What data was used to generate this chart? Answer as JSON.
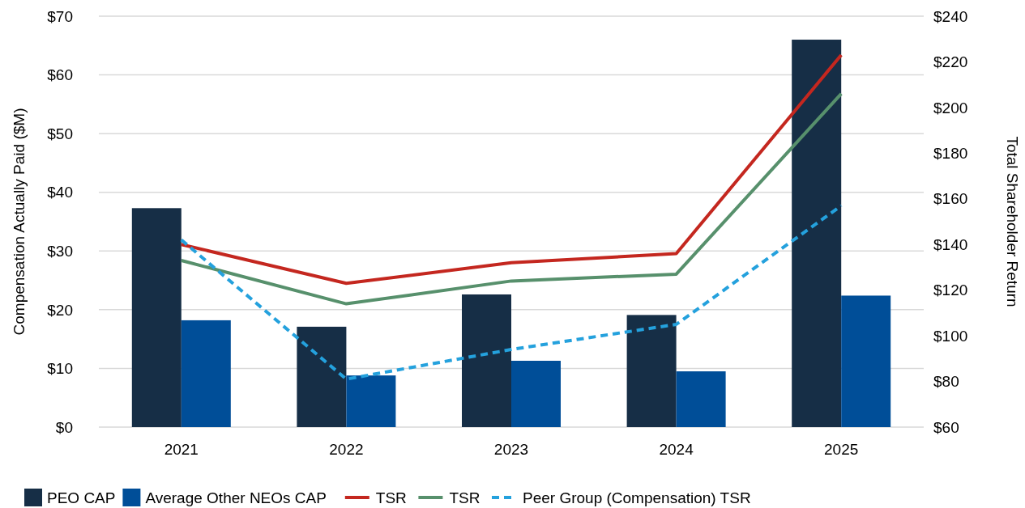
{
  "chart_data": {
    "type": "bar",
    "categories": [
      "2021",
      "2022",
      "2023",
      "2024",
      "2025"
    ],
    "ylabel": "Compensation Actually Paid ($M)",
    "y2label": "Total Shareholder Return",
    "ylim": [
      0,
      70
    ],
    "yticks": [
      {
        "value": 0,
        "label": "$0"
      },
      {
        "value": 10,
        "label": "$10"
      },
      {
        "value": 20,
        "label": "$20"
      },
      {
        "value": 30,
        "label": "$30"
      },
      {
        "value": 40,
        "label": "$40"
      },
      {
        "value": 50,
        "label": "$50"
      },
      {
        "value": 60,
        "label": "$60"
      },
      {
        "value": 70,
        "label": "$70"
      }
    ],
    "y2lim": [
      60,
      240
    ],
    "y2ticks": [
      {
        "value": 60,
        "label": "$60"
      },
      {
        "value": 80,
        "label": "$80"
      },
      {
        "value": 100,
        "label": "$100"
      },
      {
        "value": 120,
        "label": "$120"
      },
      {
        "value": 140,
        "label": "$140"
      },
      {
        "value": 160,
        "label": "$160"
      },
      {
        "value": 180,
        "label": "$180"
      },
      {
        "value": 200,
        "label": "$200"
      },
      {
        "value": 220,
        "label": "$220"
      },
      {
        "value": 240,
        "label": "$240"
      }
    ],
    "grid": "y",
    "legend": "bottom",
    "series": [
      {
        "name": "PEO CAP",
        "color": "#162e46",
        "values": [
          37.3,
          17.1,
          22.6,
          19.1,
          66.0
        ]
      },
      {
        "name": "Average Other NEOs CAP",
        "color": "#004e98",
        "values": [
          18.2,
          8.8,
          11.3,
          9.5,
          22.4
        ]
      },
      {
        "name": "TSR",
        "type": "line",
        "axis": "y2",
        "color": "#c4271f",
        "line_style": "solid",
        "values": [
          140,
          123,
          132,
          136,
          223
        ]
      },
      {
        "name": "TSR",
        "type": "line",
        "axis": "y2",
        "color": "#57906c",
        "line_style": "solid",
        "values": [
          133,
          114,
          124,
          127,
          206
        ]
      },
      {
        "name": "Peer Group (Compensation) TSR",
        "type": "line",
        "axis": "y2",
        "color": "#24a1dd",
        "line_style": "dashed",
        "values": [
          142,
          81,
          94,
          105,
          157
        ]
      }
    ]
  }
}
